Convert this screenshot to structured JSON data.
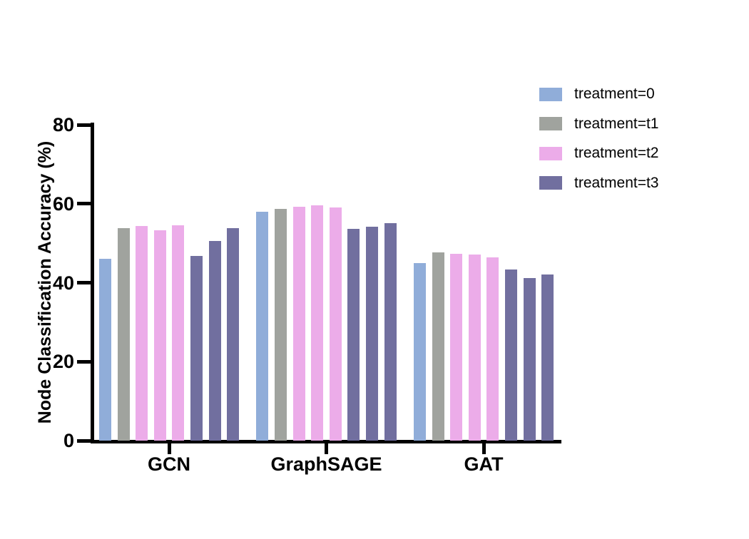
{
  "chart_data": {
    "type": "bar",
    "title": "",
    "xlabel": "",
    "ylabel": "Node Classification Accuracy (%)",
    "ylim": [
      0,
      80
    ],
    "yticks": [
      "0",
      "20",
      "40",
      "60",
      "80"
    ],
    "ytick_values": [
      0,
      20,
      40,
      60,
      80
    ],
    "grid": "off",
    "legend_position": "top-right",
    "categories": [
      "GCN",
      "GraphSAGE",
      "GAT"
    ],
    "legend": [
      {
        "label": "treatment=0",
        "color": "#90ADD9"
      },
      {
        "label": "treatment=t1",
        "color": "#A0A39E"
      },
      {
        "label": "treatment=t2",
        "color": "#ECACE9"
      },
      {
        "label": "treatment=t3",
        "color": "#716F9F"
      }
    ],
    "groups": [
      {
        "category": "GCN",
        "bars": [
          {
            "series": "treatment=0",
            "value": 46.0
          },
          {
            "series": "treatment=t1",
            "value": 53.9
          },
          {
            "series": "treatment=t2",
            "value": 54.4
          },
          {
            "series": "treatment=t2",
            "value": 53.3
          },
          {
            "series": "treatment=t2",
            "value": 54.6
          },
          {
            "series": "treatment=t3",
            "value": 46.8
          },
          {
            "series": "treatment=t3",
            "value": 50.6
          },
          {
            "series": "treatment=t3",
            "value": 53.8
          }
        ]
      },
      {
        "category": "GraphSAGE",
        "bars": [
          {
            "series": "treatment=0",
            "value": 58.0
          },
          {
            "series": "treatment=t1",
            "value": 58.7
          },
          {
            "series": "treatment=t2",
            "value": 59.2
          },
          {
            "series": "treatment=t2",
            "value": 59.6
          },
          {
            "series": "treatment=t2",
            "value": 59.0
          },
          {
            "series": "treatment=t3",
            "value": 53.6
          },
          {
            "series": "treatment=t3",
            "value": 54.2
          },
          {
            "series": "treatment=t3",
            "value": 55.1
          }
        ]
      },
      {
        "category": "GAT",
        "bars": [
          {
            "series": "treatment=0",
            "value": 45.0
          },
          {
            "series": "treatment=t1",
            "value": 47.7
          },
          {
            "series": "treatment=t2",
            "value": 47.3
          },
          {
            "series": "treatment=t2",
            "value": 47.1
          },
          {
            "series": "treatment=t2",
            "value": 46.5
          },
          {
            "series": "treatment=t3",
            "value": 43.3
          },
          {
            "series": "treatment=t3",
            "value": 41.2
          },
          {
            "series": "treatment=t3",
            "value": 42.1
          }
        ]
      }
    ]
  }
}
